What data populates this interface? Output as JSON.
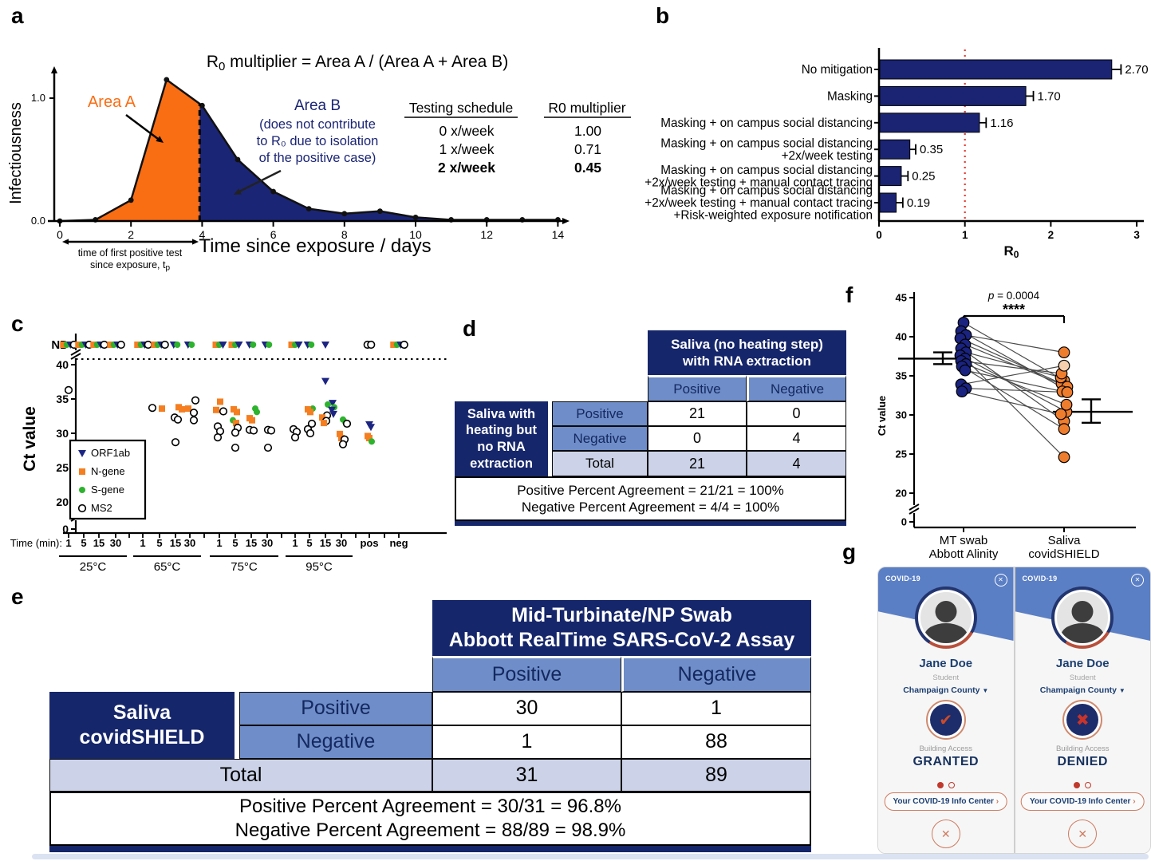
{
  "panel_labels": [
    "a",
    "b",
    "c",
    "d",
    "e",
    "f",
    "g"
  ],
  "colors": {
    "navy_table": "#16266b",
    "mid_blue": "#6e8dc9",
    "lavender": "#ccd3e8",
    "area_orange": "#f96d13",
    "area_navy": "#1b2575",
    "bar_navy": "#1a2472",
    "reference_red": "#e8392e",
    "green": "#2db32d",
    "n_gene_orange": "#f47e20",
    "f_navy": "#1a2380",
    "f_orange": "#ef7d2e",
    "f_peach": "#f5cfae"
  },
  "chart_data": [
    {
      "id": "a",
      "type": "area",
      "title_main": "R",
      "title_sub": "0",
      "title_rest": " multiplier = Area A / (Area A + Area B)",
      "xlabel": "Time since exposure / days",
      "ylabel": "Infectiousness",
      "x_ticks": [
        0,
        2,
        4,
        6,
        8,
        10,
        12,
        14
      ],
      "y_tick_labels": [
        "0.0",
        "1.0"
      ],
      "x": [
        0,
        1,
        2,
        3,
        4,
        5,
        6,
        7,
        8,
        9,
        10,
        11,
        12,
        13,
        14
      ],
      "y": [
        0,
        0.01,
        0.17,
        1.15,
        0.94,
        0.5,
        0.24,
        0.1,
        0.06,
        0.08,
        0.03,
        0.01,
        0.01,
        0.01,
        0.01
      ],
      "split_day": 3.93,
      "area_a": {
        "label": "Area A",
        "color": "#f96d13"
      },
      "area_b": {
        "label": "Area B",
        "color": "#1b2575",
        "note_lines": [
          "(does not contribute",
          "to R₀ due to isolation",
          "of the positive case)"
        ]
      },
      "tp_bracket_line1": "time of first positive test",
      "tp_bracket_line2_main": "since exposure, t",
      "tp_bracket_line2_sub": "p",
      "schedule_table": {
        "headers": [
          "Testing schedule",
          "R0 multiplier"
        ],
        "rows": [
          [
            "0 x/week",
            "1.00"
          ],
          [
            "1 x/week",
            "0.71"
          ],
          [
            "2 x/week",
            "0.45"
          ]
        ],
        "bold_row_index": 2
      }
    },
    {
      "id": "b",
      "type": "bar",
      "orientation": "horizontal",
      "categories": [
        [
          "No mitigation"
        ],
        [
          "Masking"
        ],
        [
          "Masking + on campus social distancing"
        ],
        [
          "Masking + on campus social distancing",
          "+2x/week testing"
        ],
        [
          "Masking + on campus social distancing",
          "+2x/week testing + manual contact tracing"
        ],
        [
          "Masking + on campus social distancing",
          "+2x/week testing + manual contact tracing",
          "+Risk-weighted exposure notification"
        ]
      ],
      "values": [
        2.7,
        1.7,
        1.16,
        0.35,
        0.25,
        0.19
      ],
      "value_labels": [
        "2.70",
        "1.70",
        "1.16",
        "0.35",
        "0.25",
        "0.19"
      ],
      "errors": [
        0.08,
        0.06,
        0.05,
        0.04,
        0.05,
        0.05
      ],
      "xlabel_main": "R",
      "xlabel_sub": "0",
      "xlim": [
        0,
        3
      ],
      "x_ticks": [
        0,
        1,
        2,
        3
      ],
      "reference_line": 1,
      "bar_color": "#1a2472",
      "reference_color": "#e8392e"
    },
    {
      "id": "c",
      "type": "scatter",
      "ylabel": "Ct value",
      "xlabel_prefix": "Time (min):",
      "y_ticks": [
        "ND",
        "40",
        "35",
        "30",
        "25",
        "20",
        "0"
      ],
      "series": [
        {
          "name": "ORF1ab",
          "marker": "triangle-down",
          "color": "#1d2583"
        },
        {
          "name": "N-gene",
          "marker": "square",
          "color": "#f47e20"
        },
        {
          "name": "S-gene",
          "marker": "circle",
          "color": "#2db32d"
        },
        {
          "name": "MS2",
          "marker": "open-circle",
          "color": "#000000"
        }
      ],
      "groups": [
        {
          "label": "25°C",
          "times": [
            "1",
            "5",
            "15",
            "30"
          ]
        },
        {
          "label": "65°C",
          "times": [
            "1",
            "5",
            "15",
            "30"
          ]
        },
        {
          "label": "75°C",
          "times": [
            "1",
            "5",
            "15",
            "30"
          ]
        },
        {
          "label": "95°C",
          "times": [
            "1",
            "5",
            "15",
            "30"
          ]
        }
      ],
      "extra_columns": [
        "pos",
        "neg"
      ],
      "points": [
        [
          0,
          0,
          3,
          36.3,
          0
        ],
        [
          1,
          1,
          3,
          33.7,
          -9
        ],
        [
          1,
          1,
          1,
          33.6,
          3
        ],
        [
          1,
          2,
          1,
          33.8,
          4
        ],
        [
          1,
          2,
          1,
          33.5,
          8
        ],
        [
          1,
          2,
          3,
          32.3,
          -1
        ],
        [
          1,
          2,
          3,
          32.0,
          3
        ],
        [
          1,
          2,
          3,
          28.7,
          0
        ],
        [
          1,
          3,
          3,
          34.8,
          7
        ],
        [
          1,
          3,
          1,
          33.6,
          -2
        ],
        [
          1,
          3,
          3,
          33.0,
          5
        ],
        [
          1,
          3,
          3,
          31.9,
          5
        ],
        [
          2,
          0,
          1,
          34.6,
          1
        ],
        [
          2,
          0,
          1,
          33.4,
          -4
        ],
        [
          2,
          0,
          3,
          33.2,
          5
        ],
        [
          2,
          0,
          3,
          31.0,
          -2
        ],
        [
          2,
          0,
          3,
          30.3,
          1
        ],
        [
          2,
          0,
          3,
          29.4,
          -2
        ],
        [
          2,
          1,
          1,
          33.5,
          -2
        ],
        [
          2,
          1,
          1,
          33.1,
          2
        ],
        [
          2,
          1,
          2,
          31.9,
          -3
        ],
        [
          2,
          1,
          1,
          31.5,
          1
        ],
        [
          2,
          1,
          3,
          30.8,
          3
        ],
        [
          2,
          1,
          3,
          30.1,
          0
        ],
        [
          2,
          1,
          3,
          27.9,
          0
        ],
        [
          2,
          2,
          2,
          33.6,
          5
        ],
        [
          2,
          2,
          2,
          33.1,
          7
        ],
        [
          2,
          2,
          1,
          32.2,
          -2
        ],
        [
          2,
          2,
          1,
          31.9,
          1
        ],
        [
          2,
          2,
          3,
          30.5,
          -2
        ],
        [
          2,
          2,
          3,
          30.4,
          3
        ],
        [
          2,
          3,
          3,
          30.5,
          1
        ],
        [
          2,
          3,
          3,
          30.4,
          5
        ],
        [
          2,
          3,
          3,
          27.9,
          1
        ],
        [
          3,
          0,
          3,
          30.6,
          -2
        ],
        [
          3,
          0,
          3,
          30.2,
          2
        ],
        [
          3,
          0,
          3,
          29.4,
          0
        ],
        [
          3,
          1,
          2,
          33.6,
          4
        ],
        [
          3,
          1,
          1,
          33.5,
          -2
        ],
        [
          3,
          1,
          1,
          33.1,
          1
        ],
        [
          3,
          1,
          3,
          31.4,
          3
        ],
        [
          3,
          1,
          3,
          30.6,
          -2
        ],
        [
          3,
          1,
          3,
          30.0,
          1
        ],
        [
          3,
          2,
          0,
          37.6,
          0
        ],
        [
          3,
          2,
          0,
          34.4,
          9
        ],
        [
          3,
          2,
          2,
          34.2,
          3
        ],
        [
          3,
          2,
          2,
          33.8,
          11
        ],
        [
          3,
          2,
          0,
          33.4,
          8
        ],
        [
          3,
          2,
          0,
          32.8,
          10
        ],
        [
          3,
          2,
          3,
          32.6,
          2
        ],
        [
          3,
          2,
          1,
          32.3,
          -4
        ],
        [
          3,
          2,
          3,
          31.8,
          1
        ],
        [
          3,
          2,
          1,
          31.5,
          -2
        ],
        [
          3,
          3,
          2,
          32.0,
          2
        ],
        [
          3,
          3,
          2,
          31.6,
          5
        ],
        [
          3,
          3,
          3,
          31.4,
          7
        ],
        [
          3,
          3,
          1,
          29.9,
          -2
        ],
        [
          3,
          3,
          1,
          29.3,
          0
        ],
        [
          3,
          3,
          3,
          29.1,
          4
        ],
        [
          3,
          3,
          3,
          28.4,
          2
        ],
        [
          4,
          0,
          0,
          31.3,
          0
        ],
        [
          4,
          0,
          0,
          30.9,
          2
        ],
        [
          4,
          0,
          1,
          29.6,
          -2
        ],
        [
          4,
          0,
          1,
          29.3,
          0
        ],
        [
          4,
          0,
          2,
          28.8,
          3
        ]
      ],
      "nd_clusters": [
        [
          0,
          0,
          [
            1,
            2,
            0,
            3
          ]
        ],
        [
          0,
          1,
          [
            1,
            2,
            0,
            3
          ]
        ],
        [
          0,
          2,
          [
            1,
            2,
            0,
            3
          ]
        ],
        [
          0,
          3,
          [
            1,
            2,
            0,
            3
          ]
        ],
        [
          1,
          0,
          [
            1,
            2,
            0,
            3
          ]
        ],
        [
          1,
          1,
          [
            1,
            2,
            0,
            3
          ]
        ],
        [
          1,
          2,
          [
            0,
            2
          ]
        ],
        [
          1,
          3,
          [
            0,
            2
          ]
        ],
        [
          2,
          0,
          [
            1,
            2,
            0
          ]
        ],
        [
          2,
          1,
          [
            1,
            2,
            0
          ]
        ],
        [
          2,
          2,
          [
            0,
            2
          ]
        ],
        [
          2,
          3,
          [
            0,
            2
          ]
        ],
        [
          3,
          0,
          [
            1,
            2,
            0
          ]
        ],
        [
          3,
          1,
          [
            0,
            2
          ]
        ],
        [
          3,
          2,
          [
            0
          ]
        ],
        [
          4,
          0,
          [
            3,
            3
          ]
        ],
        [
          5,
          0,
          [
            1,
            2,
            0,
            3
          ]
        ]
      ]
    },
    {
      "id": "f",
      "type": "paired-scatter",
      "ylabel": "Ct value",
      "p_italic": "p",
      "p_rest": " = 0.0004",
      "sig_label": "****",
      "y_ticks": [
        "45",
        "40",
        "35",
        "30",
        "25",
        "20",
        "0"
      ],
      "categories": [
        [
          "MT swab",
          "Abbott Alinity"
        ],
        [
          "Saliva",
          "covidSHIELD"
        ]
      ],
      "pairs": [
        [
          41.8,
          34.4
        ],
        [
          40.7,
          33.2
        ],
        [
          40.2,
          38.0
        ],
        [
          39.8,
          34.0
        ],
        [
          39.0,
          33.6
        ],
        [
          38.5,
          29.2
        ],
        [
          38.0,
          34.8
        ],
        [
          37.6,
          30.4
        ],
        [
          37.2,
          24.6
        ],
        [
          36.9,
          35.3
        ],
        [
          36.5,
          31.3
        ],
        [
          36.2,
          28.2
        ],
        [
          35.7,
          33.0
        ],
        [
          33.9,
          36.3
        ],
        [
          33.4,
          32.9
        ],
        [
          33.0,
          30.1
        ]
      ],
      "highlight_pair_index": 13,
      "left_stats": {
        "mean": 37.2,
        "lo": 36.5,
        "hi": 38.0
      },
      "right_stats": {
        "mean": 30.4,
        "lo": 29.0,
        "hi": 32.0
      },
      "colors": {
        "left": "#1a2380",
        "right": "#ef7d2e",
        "highlight": "#f5cfae",
        "line": "#4a4a4a"
      }
    }
  ],
  "table_d": {
    "corner_lines": [
      "Saliva with",
      "heating but",
      "no RNA",
      "extraction"
    ],
    "header_lines": [
      "Saliva (no heating step)",
      "with RNA extraction"
    ],
    "subheaders": [
      "Positive",
      "Negative"
    ],
    "rows": [
      {
        "label": "Positive",
        "cells": [
          "21",
          "0"
        ]
      },
      {
        "label": "Negative",
        "cells": [
          "0",
          "4"
        ]
      },
      {
        "label": "Total",
        "cells": [
          "21",
          "4"
        ]
      }
    ],
    "footer_lines": [
      "Positive Percent Agreement = 21/21 = 100%",
      "Negative Percent Agreement = 4/4 = 100%"
    ]
  },
  "table_e": {
    "corner_lines": [
      "Saliva",
      "covidSHIELD"
    ],
    "header_lines": [
      "Mid-Turbinate/NP Swab",
      "Abbott RealTime SARS-CoV-2 Assay"
    ],
    "subheaders": [
      "Positive",
      "Negative"
    ],
    "rows": [
      {
        "label": "Positive",
        "cells": [
          "30",
          "1"
        ]
      },
      {
        "label": "Negative",
        "cells": [
          "1",
          "88"
        ]
      }
    ],
    "total_row": {
      "label": "Total",
      "cells": [
        "31",
        "89"
      ]
    },
    "footer_lines": [
      "Positive Percent Agreement = 30/31 = 96.8%",
      "Negative Percent Agreement = 88/89 = 98.9%"
    ]
  },
  "phones": {
    "screens": [
      {
        "header": "COVID-19",
        "name": "Jane Doe",
        "role": "Student",
        "location": "Champaign County",
        "access_label": "Building Access",
        "access_status": "GRANTED",
        "badge": "check",
        "info_button": "Your COVID-19 Info Center"
      },
      {
        "header": "COVID-19",
        "name": "Jane Doe",
        "role": "Student",
        "location": "Champaign County",
        "access_label": "Building Access",
        "access_status": "DENIED",
        "badge": "x",
        "info_button": "Your COVID-19 Info Center"
      }
    ]
  }
}
